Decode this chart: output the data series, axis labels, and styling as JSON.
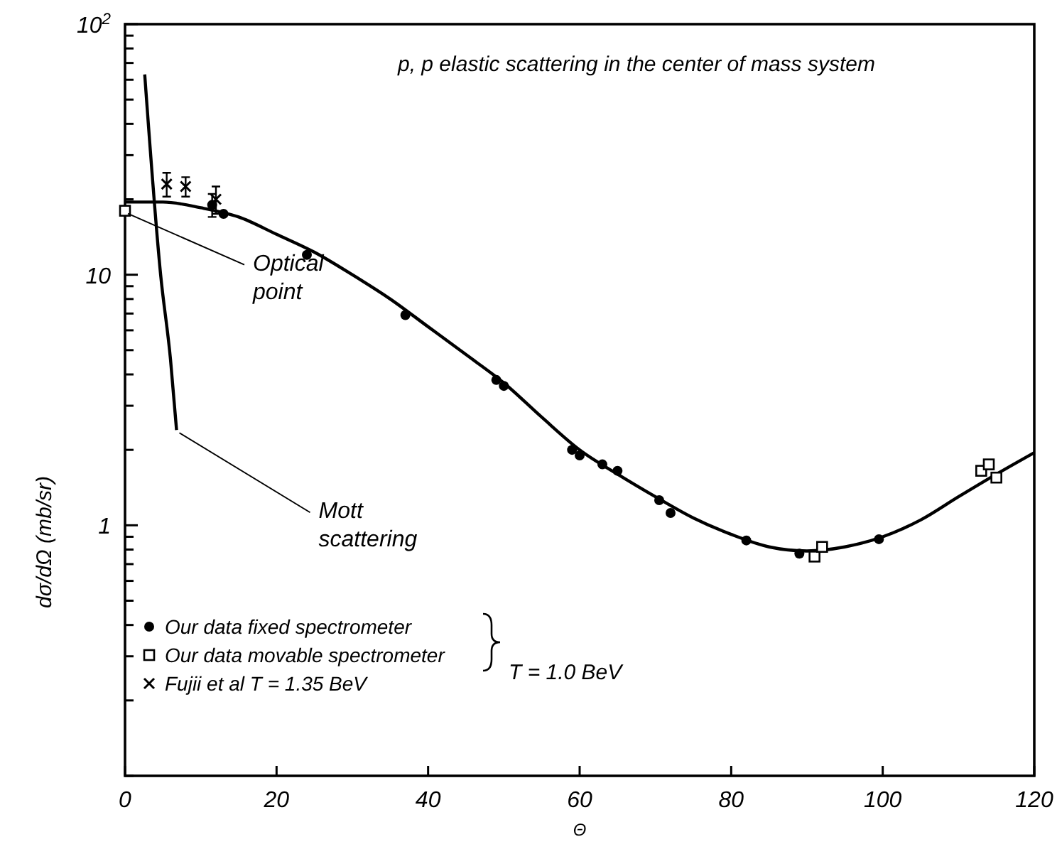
{
  "chart_data": {
    "type": "scatter",
    "title": "p, p  elastic scattering in the center of mass system",
    "xlabel": "Θ",
    "ylabel": "dσ/dΩ (mb/sr)",
    "log": "y",
    "xlim": [
      0,
      120
    ],
    "ylim": [
      0.1,
      100
    ],
    "xticks": [
      0,
      20,
      40,
      60,
      80,
      100,
      120
    ],
    "yticks": [
      {
        "value": 0.1,
        "label": null
      },
      {
        "value": 0.2,
        "label": null
      },
      {
        "value": 0.3,
        "label": null
      },
      {
        "value": 0.4,
        "label": null
      },
      {
        "value": 0.5,
        "label": null
      },
      {
        "value": 0.6,
        "label": null
      },
      {
        "value": 0.7,
        "label": null
      },
      {
        "value": 0.8,
        "label": null
      },
      {
        "value": 0.9,
        "label": null
      },
      1,
      {
        "value": 2,
        "label": null
      },
      {
        "value": 3,
        "label": null
      },
      {
        "value": 4,
        "label": null
      },
      {
        "value": 5,
        "label": null
      },
      {
        "value": 6,
        "label": null
      },
      {
        "value": 7,
        "label": null
      },
      {
        "value": 8,
        "label": null
      },
      {
        "value": 9,
        "label": null
      },
      10,
      {
        "value": 20,
        "label": null
      },
      {
        "value": 30,
        "label": null
      },
      {
        "value": 40,
        "label": null
      },
      {
        "value": 50,
        "label": null
      },
      {
        "value": 60,
        "label": null
      },
      {
        "value": 70,
        "label": null
      },
      {
        "value": 80,
        "label": null
      },
      {
        "value": 90,
        "label": null
      },
      {
        "value": 100,
        "label": "10$^{2}$"
      }
    ],
    "grid": false,
    "legend": "bottom left",
    "series": [
      {
        "type": "line",
        "color": "#000000",
        "marker": "none",
        "x": [
          0,
          5,
          10,
          15,
          20,
          25,
          30,
          35,
          40,
          45,
          50,
          55,
          60,
          65,
          70,
          75,
          80,
          85,
          90,
          95,
          100,
          105,
          110,
          115,
          120
        ],
        "values": [
          19.5,
          19.5,
          18.5,
          17,
          14.5,
          12.3,
          10,
          8,
          6.2,
          4.8,
          3.7,
          2.7,
          2,
          1.6,
          1.3,
          1.07,
          0.92,
          0.82,
          0.79,
          0.82,
          0.9,
          1.05,
          1.3,
          1.6,
          1.95
        ]
      },
      {
        "type": "line",
        "color": "#000000",
        "marker": "none",
        "x": [
          2.6,
          4.7,
          6,
          6.8
        ],
        "values": [
          63,
          10,
          4.6,
          2.4
        ]
      },
      {
        "name": "Our data fixed spectrometer",
        "color": "#000000",
        "marker": "circle",
        "x": [
          11.5,
          13,
          24,
          37,
          49,
          50,
          59,
          60,
          63,
          65,
          70.5,
          72,
          82,
          89,
          99.5
        ],
        "values": [
          19,
          17.5,
          12,
          6.9,
          3.8,
          3.6,
          2,
          1.9,
          1.75,
          1.65,
          1.26,
          1.12,
          0.87,
          0.77,
          0.88
        ],
        "errors": [
          [
            17,
            21
          ],
          null,
          null,
          null,
          null,
          null,
          null,
          null,
          null,
          null,
          null,
          null,
          null,
          null,
          null
        ]
      },
      {
        "name": "Our data movable spectrometer",
        "color": "#000000",
        "marker": "square",
        "x": [
          0,
          91,
          92,
          113,
          114,
          115
        ],
        "values": [
          18,
          0.75,
          0.82,
          1.65,
          1.75,
          1.55
        ]
      },
      {
        "name": "Fujii et al    T = 1.35 BeV",
        "color": "#000000",
        "marker": "cross",
        "x": [
          5.5,
          8,
          12
        ],
        "values": [
          23,
          22.5,
          20
        ],
        "errors": [
          [
            20.5,
            25.5
          ],
          [
            20.5,
            24.5
          ],
          [
            17.5,
            22.5
          ]
        ]
      }
    ],
    "annotations": [
      {
        "text": "Optical point",
        "x": 0,
        "y": 18
      },
      {
        "text": "Mott scattering",
        "x": 6.8,
        "y": 2.4
      },
      "T = 1.0 BeV"
    ]
  }
}
